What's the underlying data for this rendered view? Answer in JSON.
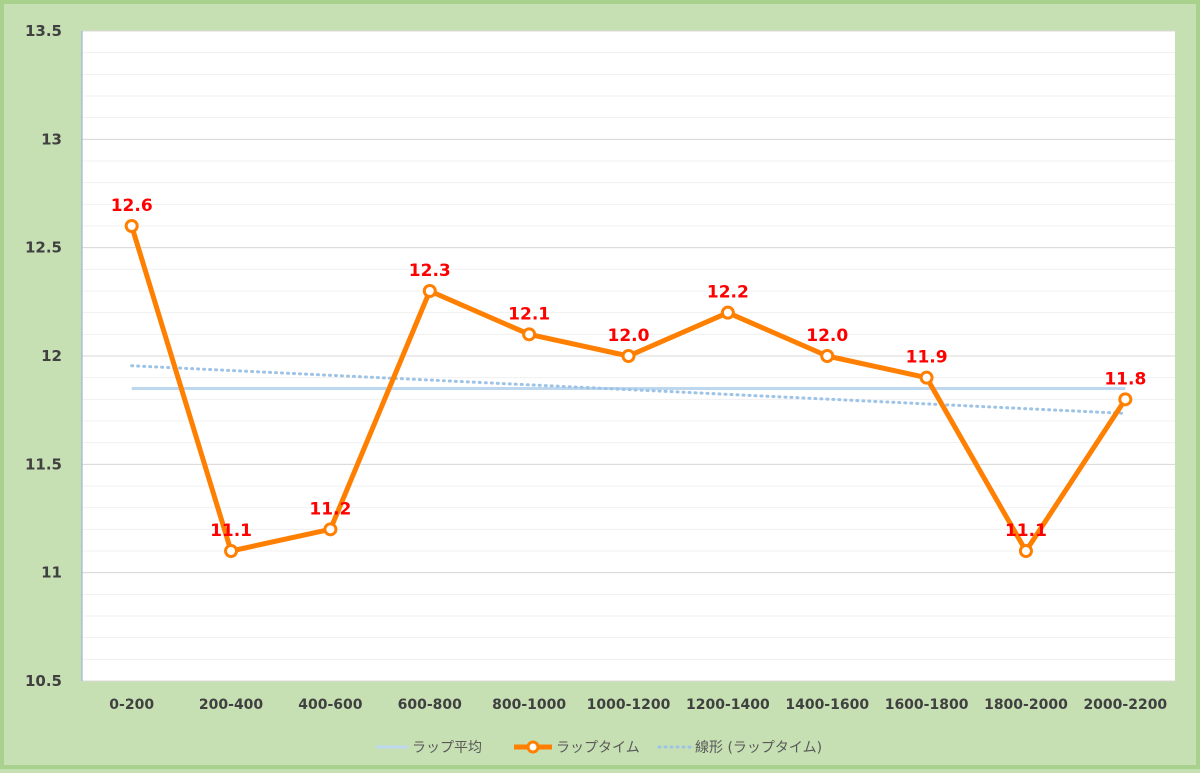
{
  "chart_data": {
    "type": "line",
    "categories": [
      "0-200",
      "200-400",
      "400-600",
      "600-800",
      "800-1000",
      "1000-1200",
      "1200-1400",
      "1400-1600",
      "1600-1800",
      "1800-2000",
      "2000-2200"
    ],
    "series": [
      {
        "name": "ラップ平均",
        "values": [
          11.85,
          11.85,
          11.85,
          11.85,
          11.85,
          11.85,
          11.85,
          11.85,
          11.85,
          11.85,
          11.85
        ],
        "color": "#bdd7ee",
        "style": "solid"
      },
      {
        "name": "ラップタイム",
        "values": [
          12.6,
          11.1,
          11.2,
          12.3,
          12.1,
          12.0,
          12.2,
          12.0,
          11.9,
          11.1,
          11.8
        ],
        "labels": [
          "12.6",
          "11.1",
          "11.2",
          "12.3",
          "12.1",
          "12.0",
          "12.2",
          "12.0",
          "11.9",
          "11.1",
          "11.8"
        ],
        "color": "#ff7f00",
        "label_color": "#ff0000",
        "style": "solid-markers"
      },
      {
        "name": "線形 (ラップタイム)",
        "values": [
          11.955,
          11.933,
          11.911,
          11.889,
          11.867,
          11.845,
          11.823,
          11.801,
          11.779,
          11.757,
          11.735
        ],
        "color": "#9dc3e6",
        "style": "dotted"
      }
    ],
    "yticks": [
      "10.5",
      "11",
      "11.5",
      "12",
      "12.5",
      "13",
      "13.5"
    ],
    "ylim": [
      10.5,
      13.5
    ],
    "minor_step": 0.1,
    "grid": true,
    "legend_position": "bottom",
    "title": "",
    "xlabel": "",
    "ylabel": ""
  }
}
